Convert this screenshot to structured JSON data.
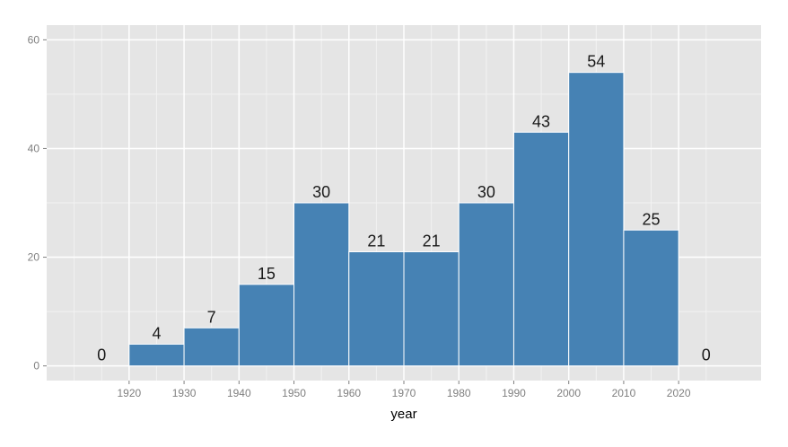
{
  "chart_data": {
    "type": "bar",
    "xlabel": "year",
    "ylabel": "",
    "xlim": [
      1905,
      2035
    ],
    "ylim": [
      -2.7,
      62.7
    ],
    "x_ticks": [
      1920,
      1930,
      1940,
      1950,
      1960,
      1970,
      1980,
      1990,
      2000,
      2010,
      2020
    ],
    "x_tick_labels": [
      "1920",
      "1930",
      "1940",
      "1950",
      "1960",
      "1970",
      "1980",
      "1990",
      "2000",
      "2010",
      "2020"
    ],
    "y_ticks": [
      0,
      20,
      40,
      60
    ],
    "y_tick_labels": [
      "0",
      "20",
      "40",
      "60"
    ],
    "bins": [
      {
        "start": 1910,
        "end": 1920,
        "value": 0,
        "label": "0"
      },
      {
        "start": 1920,
        "end": 1930,
        "value": 4,
        "label": "4"
      },
      {
        "start": 1930,
        "end": 1940,
        "value": 7,
        "label": "7"
      },
      {
        "start": 1940,
        "end": 1950,
        "value": 15,
        "label": "15"
      },
      {
        "start": 1950,
        "end": 1960,
        "value": 30,
        "label": "30"
      },
      {
        "start": 1960,
        "end": 1970,
        "value": 21,
        "label": "21"
      },
      {
        "start": 1970,
        "end": 1980,
        "value": 21,
        "label": "21"
      },
      {
        "start": 1980,
        "end": 1990,
        "value": 30,
        "label": "30"
      },
      {
        "start": 1990,
        "end": 2000,
        "value": 43,
        "label": "43"
      },
      {
        "start": 2000,
        "end": 2010,
        "value": 54,
        "label": "54"
      },
      {
        "start": 2010,
        "end": 2020,
        "value": 25,
        "label": "25"
      },
      {
        "start": 2020,
        "end": 2030,
        "value": 0,
        "label": "0"
      }
    ],
    "grid": true,
    "legend": "none",
    "colors": {
      "panel_background": "#e5e5e5",
      "grid_major": "#ffffff",
      "grid_minor": "#f2f2f2",
      "bar_fill": "#4682b4",
      "bar_outline": "#ffffff",
      "tick_label": "#7f7f7f",
      "axis_title": "#000000",
      "value_label": "#1a1a1a"
    }
  }
}
